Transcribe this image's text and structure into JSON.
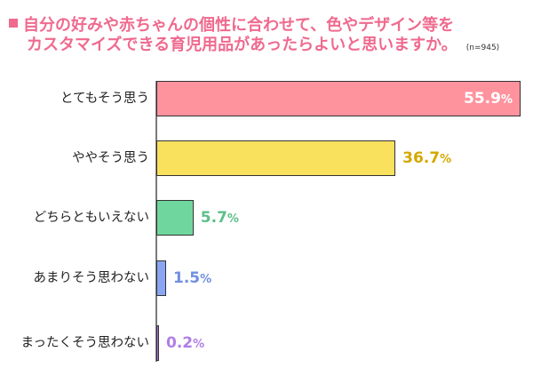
{
  "title": {
    "line1": "自分の好みや赤ちゃんの個性に合わせて、色やデザイン等を",
    "line2": "カスタマイズできる育児用品があったらよいと思いますか。",
    "sample_size": "(n=945)",
    "color": "#ef6a8e"
  },
  "chart_data": {
    "type": "bar",
    "orientation": "horizontal",
    "title": "自分の好みや赤ちゃんの個性に合わせて、色やデザイン等をカスタマイズできる育児用品があったらよいと思いますか。",
    "subtitle": "(n=945)",
    "xlabel": "",
    "ylabel": "",
    "unit": "%",
    "grid": false,
    "legend": null,
    "categories": [
      "とてもそう思う",
      "ややそう思う",
      "どちらともいえない",
      "あまりそう思わない",
      "まったくそう思わない"
    ],
    "values": [
      55.9,
      36.7,
      5.7,
      1.5,
      0.2
    ],
    "value_labels": [
      "55.9",
      "36.7",
      "5.7",
      "1.5",
      "0.2"
    ],
    "colors": [
      "#fe939e",
      "#f9e15e",
      "#6fd79d",
      "#8aa6f2",
      "#b46ee3"
    ],
    "label_colors": [
      "#ffffff",
      "#d4a800",
      "#5bbf88",
      "#6f8fe0",
      "#b07ee6"
    ],
    "xlim": [
      0,
      56
    ]
  },
  "bars": [
    {
      "label": "とてもそう思う",
      "value": "55.9",
      "unit": "%"
    },
    {
      "label": "ややそう思う",
      "value": "36.7",
      "unit": "%"
    },
    {
      "label": "どちらともいえない",
      "value": "5.7",
      "unit": "%"
    },
    {
      "label": "あまりそう思わない",
      "value": "1.5",
      "unit": "%"
    },
    {
      "label": "まったくそう思わない",
      "value": "0.2",
      "unit": "%"
    }
  ]
}
